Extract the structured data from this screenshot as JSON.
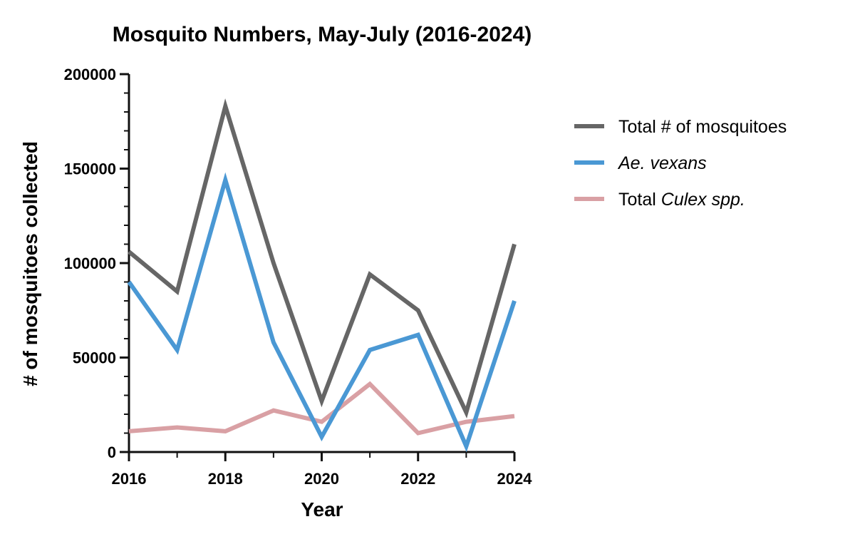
{
  "chart_data": {
    "type": "line",
    "title": "Mosquito Numbers, May-July (2016-2024)",
    "xlabel": "Year",
    "ylabel": "# of mosquitoes collected",
    "x": [
      2016,
      2017,
      2018,
      2019,
      2020,
      2021,
      2022,
      2023,
      2024
    ],
    "xticks": [
      2016,
      2018,
      2020,
      2022,
      2024
    ],
    "yticks": [
      0,
      50000,
      100000,
      150000,
      200000
    ],
    "ylim": [
      0,
      200000
    ],
    "xlim": [
      2016,
      2024
    ],
    "grid": false,
    "legend_position": "right",
    "series": [
      {
        "name": "Total # of mosquitoes",
        "legend_parts": [
          {
            "text": "Total # of mosquitoes",
            "italic": false
          }
        ],
        "color": "#666666",
        "values": [
          106000,
          85000,
          183000,
          100000,
          27000,
          94000,
          75000,
          21000,
          110000
        ]
      },
      {
        "name": "Ae. vexans",
        "legend_parts": [
          {
            "text": "Ae. vexans",
            "italic": true
          }
        ],
        "color": "#4a98d4",
        "values": [
          90000,
          54000,
          144000,
          58000,
          8000,
          54000,
          62000,
          3000,
          80000
        ]
      },
      {
        "name": "Total Culex spp.",
        "legend_parts": [
          {
            "text": "Total ",
            "italic": false
          },
          {
            "text": "Culex spp.",
            "italic": true
          }
        ],
        "color": "#d9a0a4",
        "values": [
          11000,
          13000,
          11000,
          22000,
          16000,
          36000,
          10000,
          16000,
          19000
        ]
      }
    ]
  }
}
